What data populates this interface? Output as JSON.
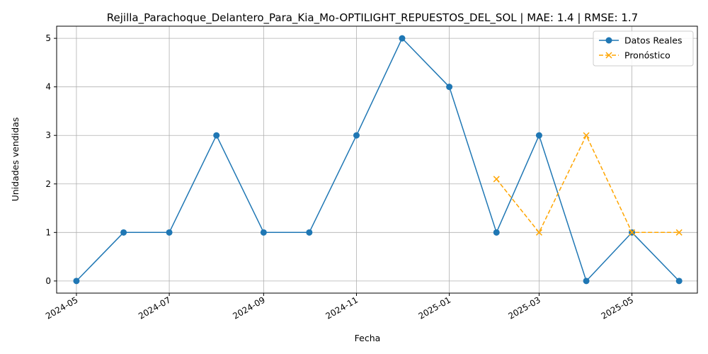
{
  "chart_data": {
    "type": "line",
    "title": "Rejilla_Parachoque_Delantero_Para_Kia_Mo-OPTILIGHT_REPUESTOS_DEL_SOL | MAE: 1.4 | RMSE: 1.7",
    "xlabel": "Fecha",
    "ylabel": "Unidades vendidas",
    "x_ticks": [
      "2024-05",
      "2024-07",
      "2024-09",
      "2024-11",
      "2025-01",
      "2025-03",
      "2025-05"
    ],
    "y_ticks": [
      "0",
      "1",
      "2",
      "3",
      "4",
      "5"
    ],
    "ylim": [
      -0.25,
      5.25
    ],
    "xlim": [
      "2024-04-18",
      "2025-06-13"
    ],
    "grid": true,
    "legend_position": "top-right",
    "series": [
      {
        "name": "Datos Reales",
        "color": "#1f77b4",
        "style": "solid",
        "marker": "circle",
        "x": [
          "2024-05-01",
          "2024-06-01",
          "2024-07-01",
          "2024-08-01",
          "2024-09-01",
          "2024-10-01",
          "2024-11-01",
          "2024-12-01",
          "2025-01-01",
          "2025-02-01",
          "2025-03-01",
          "2025-04-01",
          "2025-05-01",
          "2025-06-01"
        ],
        "values": [
          0,
          1,
          1,
          3,
          1,
          1,
          3,
          5,
          4,
          1,
          3,
          0,
          1,
          0
        ]
      },
      {
        "name": "Pronóstico",
        "color": "#ffa500",
        "style": "dashed",
        "marker": "x",
        "x": [
          "2025-02-01",
          "2025-03-01",
          "2025-04-01",
          "2025-05-01",
          "2025-06-01"
        ],
        "values": [
          2.1,
          1,
          3,
          1,
          1
        ]
      }
    ]
  }
}
